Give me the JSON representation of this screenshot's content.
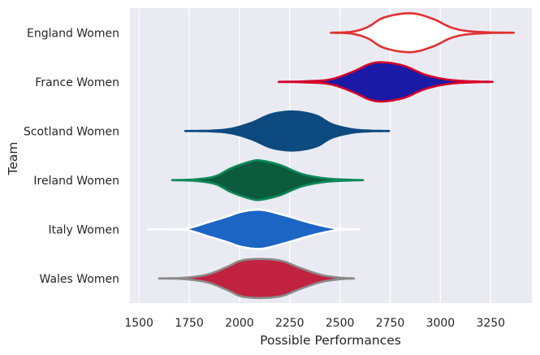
{
  "chart_data": {
    "type": "violin",
    "orientation": "horizontal",
    "xlabel": "Possible Performances",
    "ylabel": "Team",
    "xlim": [
      1455,
      3455
    ],
    "xticks": [
      1500,
      1750,
      2000,
      2250,
      2500,
      2750,
      3000,
      3250
    ],
    "grid": true,
    "background": "#eaeaf2",
    "categories": [
      "England Women",
      "France Women",
      "Scotland Women",
      "Ireland Women",
      "Italy Women",
      "Wales Women"
    ],
    "series": [
      {
        "category": "England Women",
        "min": 2455,
        "max": 3365,
        "fill": "#ffffff",
        "edge": "#e03131",
        "profile": [
          [
            2455,
            0.0
          ],
          [
            2560,
            0.05
          ],
          [
            2640,
            0.3
          ],
          [
            2720,
            0.78
          ],
          [
            2850,
            1.0
          ],
          [
            2960,
            0.72
          ],
          [
            3050,
            0.28
          ],
          [
            3130,
            0.09
          ],
          [
            3240,
            0.02
          ],
          [
            3365,
            0.0
          ]
        ]
      },
      {
        "category": "France Women",
        "min": 2195,
        "max": 3260,
        "fill": "#1a1aa6",
        "edge": "#d6002a",
        "profile": [
          [
            2195,
            0.0
          ],
          [
            2330,
            0.03
          ],
          [
            2450,
            0.12
          ],
          [
            2560,
            0.5
          ],
          [
            2650,
            0.92
          ],
          [
            2720,
            1.0
          ],
          [
            2820,
            0.82
          ],
          [
            2920,
            0.38
          ],
          [
            3020,
            0.14
          ],
          [
            3120,
            0.04
          ],
          [
            3260,
            0.0
          ]
        ]
      },
      {
        "category": "Scotland Women",
        "min": 1730,
        "max": 2745,
        "fill": "#0c4a80",
        "edge": "#0c4a80",
        "profile": [
          [
            1730,
            0.0
          ],
          [
            1860,
            0.02
          ],
          [
            1960,
            0.12
          ],
          [
            2060,
            0.42
          ],
          [
            2160,
            0.86
          ],
          [
            2270,
            1.0
          ],
          [
            2380,
            0.8
          ],
          [
            2460,
            0.35
          ],
          [
            2560,
            0.09
          ],
          [
            2650,
            0.02
          ],
          [
            2745,
            0.0
          ]
        ]
      },
      {
        "category": "Ireland Women",
        "min": 1665,
        "max": 2615,
        "fill": "#0b5c3f",
        "edge": "#0e8a5a",
        "profile": [
          [
            1665,
            0.0
          ],
          [
            1780,
            0.04
          ],
          [
            1880,
            0.2
          ],
          [
            1960,
            0.62
          ],
          [
            2060,
            0.97
          ],
          [
            2110,
            1.0
          ],
          [
            2200,
            0.78
          ],
          [
            2310,
            0.32
          ],
          [
            2420,
            0.1
          ],
          [
            2520,
            0.03
          ],
          [
            2615,
            0.0
          ]
        ]
      },
      {
        "category": "Italy Women",
        "min": 1545,
        "max": 2595,
        "fill": "#1c65c4",
        "edge": "#ffffff",
        "profile": [
          [
            1545,
            0.0
          ],
          [
            1660,
            0.0
          ],
          [
            1740,
            0.04
          ],
          [
            1850,
            0.38
          ],
          [
            1940,
            0.66
          ],
          [
            2010,
            0.9
          ],
          [
            2110,
            1.0
          ],
          [
            2230,
            0.7
          ],
          [
            2350,
            0.34
          ],
          [
            2450,
            0.1
          ],
          [
            2510,
            0.01
          ],
          [
            2595,
            0.0
          ]
        ]
      },
      {
        "category": "Wales Women",
        "min": 1600,
        "max": 2570,
        "fill": "#c0223f",
        "edge": "#8a8a8a",
        "profile": [
          [
            1600,
            0.0
          ],
          [
            1720,
            0.03
          ],
          [
            1840,
            0.2
          ],
          [
            1940,
            0.6
          ],
          [
            2010,
            0.92
          ],
          [
            2110,
            1.0
          ],
          [
            2210,
            0.9
          ],
          [
            2300,
            0.55
          ],
          [
            2400,
            0.2
          ],
          [
            2490,
            0.05
          ],
          [
            2570,
            0.0
          ]
        ]
      }
    ]
  }
}
